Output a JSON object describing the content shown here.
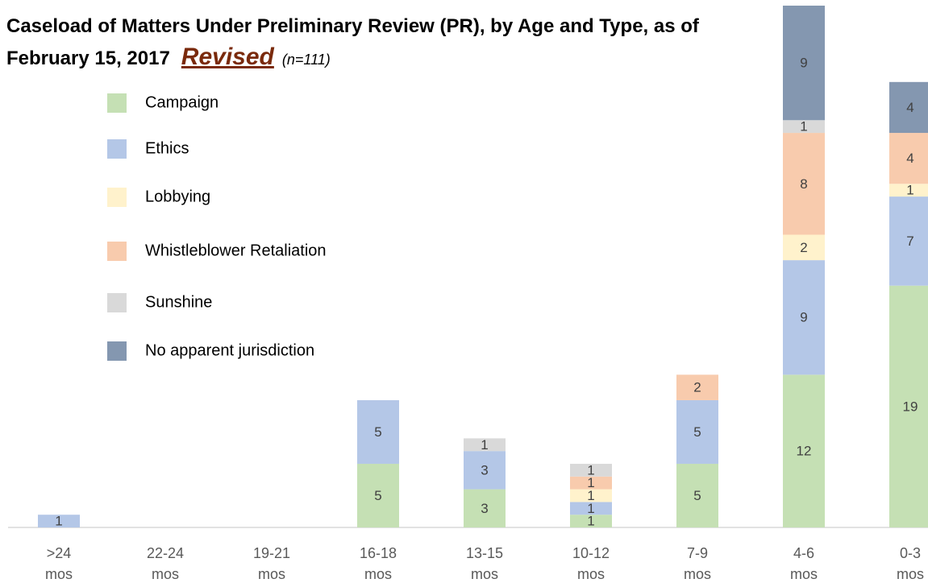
{
  "chart_data": {
    "type": "stacked_bar",
    "title": "Caseload of Matters Under Preliminary Review (PR), by Age and Type, as of February 15, 2017",
    "title_note": "Revised",
    "subtitle": "(n=111)",
    "categories": [
      ">24 mos",
      "22-24 mos",
      "19-21 mos",
      "16-18 mos",
      "13-15 mos",
      "10-12 mos",
      "7-9 mos",
      "4-6 mos",
      "0-3 mos"
    ],
    "series": [
      {
        "name": "Campaign",
        "color": "#c5e0b4",
        "values": [
          null,
          null,
          null,
          5,
          3,
          1,
          5,
          12,
          19
        ]
      },
      {
        "name": "Ethics",
        "color": "#b4c7e7",
        "values": [
          1,
          null,
          null,
          5,
          3,
          1,
          5,
          9,
          7
        ]
      },
      {
        "name": "Lobbying",
        "color": "#fff2cc",
        "values": [
          null,
          null,
          null,
          null,
          null,
          1,
          null,
          2,
          1
        ]
      },
      {
        "name": "Whistleblower Retaliation",
        "color": "#f8cbad",
        "values": [
          null,
          null,
          null,
          null,
          null,
          1,
          2,
          8,
          4
        ]
      },
      {
        "name": "Sunshine",
        "color": "#d9d9d9",
        "values": [
          null,
          null,
          null,
          null,
          1,
          1,
          null,
          1,
          null
        ]
      },
      {
        "name": "No apparent jurisdiction",
        "color": "#8497b0",
        "values": [
          null,
          null,
          null,
          null,
          null,
          null,
          null,
          9,
          4
        ]
      }
    ],
    "ylim": [
      0,
      41
    ]
  }
}
